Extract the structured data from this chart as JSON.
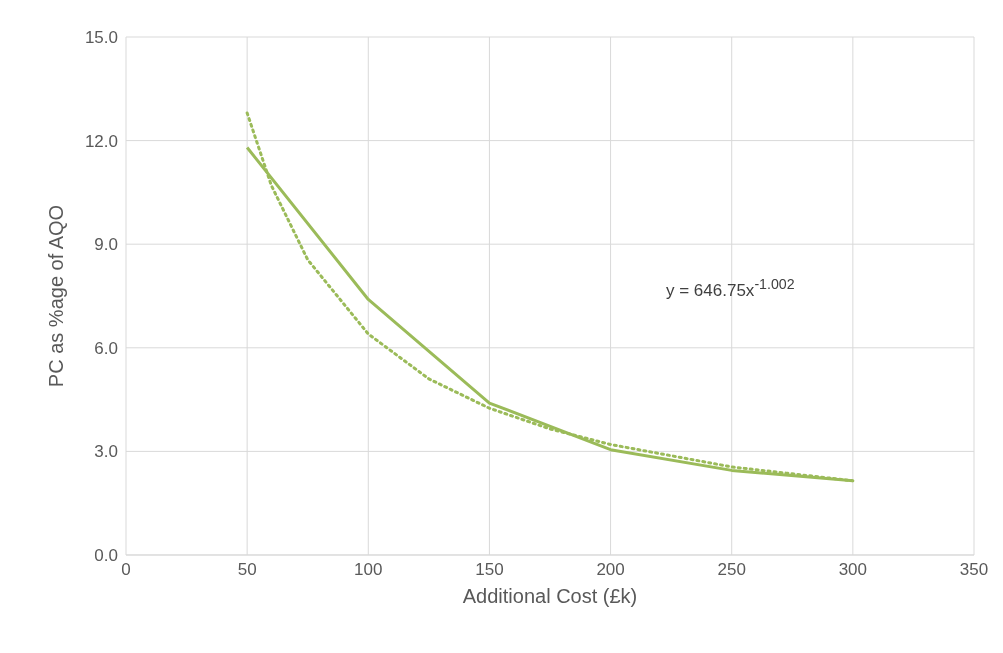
{
  "chart_data": {
    "type": "line",
    "xlabel": "Additional Cost (£k)",
    "ylabel": "PC as %age of AQO",
    "xlim": [
      0,
      350
    ],
    "xticks": [
      0,
      50,
      100,
      150,
      200,
      250,
      300,
      350
    ],
    "ylim": [
      0,
      15
    ],
    "yticks": [
      {
        "value": 0,
        "label": "0.0"
      },
      {
        "value": 3,
        "label": "3.0"
      },
      {
        "value": 6,
        "label": "6.0"
      },
      {
        "value": 9,
        "label": "9.0"
      },
      {
        "value": 12,
        "label": "12.0"
      },
      {
        "value": 15,
        "label": "15.0"
      }
    ],
    "grid": true,
    "marker": "none",
    "series": [
      {
        "color": "#9bbb59",
        "line_style": "solid",
        "x": [
          50,
          100,
          150,
          200,
          250,
          300
        ],
        "values": [
          11.8,
          7.4,
          4.4,
          3.05,
          2.45,
          2.15
        ]
      },
      {
        "color": "#9bbb59",
        "line_style": "dotted",
        "x": [
          50,
          60,
          75,
          100,
          125,
          150,
          175,
          200,
          250,
          300
        ],
        "values": [
          12.8,
          10.7,
          8.55,
          6.4,
          5.1,
          4.25,
          3.65,
          3.2,
          2.55,
          2.15
        ]
      }
    ],
    "annotations": [
      "y = 646.75x$^{-1.002}$"
    ]
  }
}
